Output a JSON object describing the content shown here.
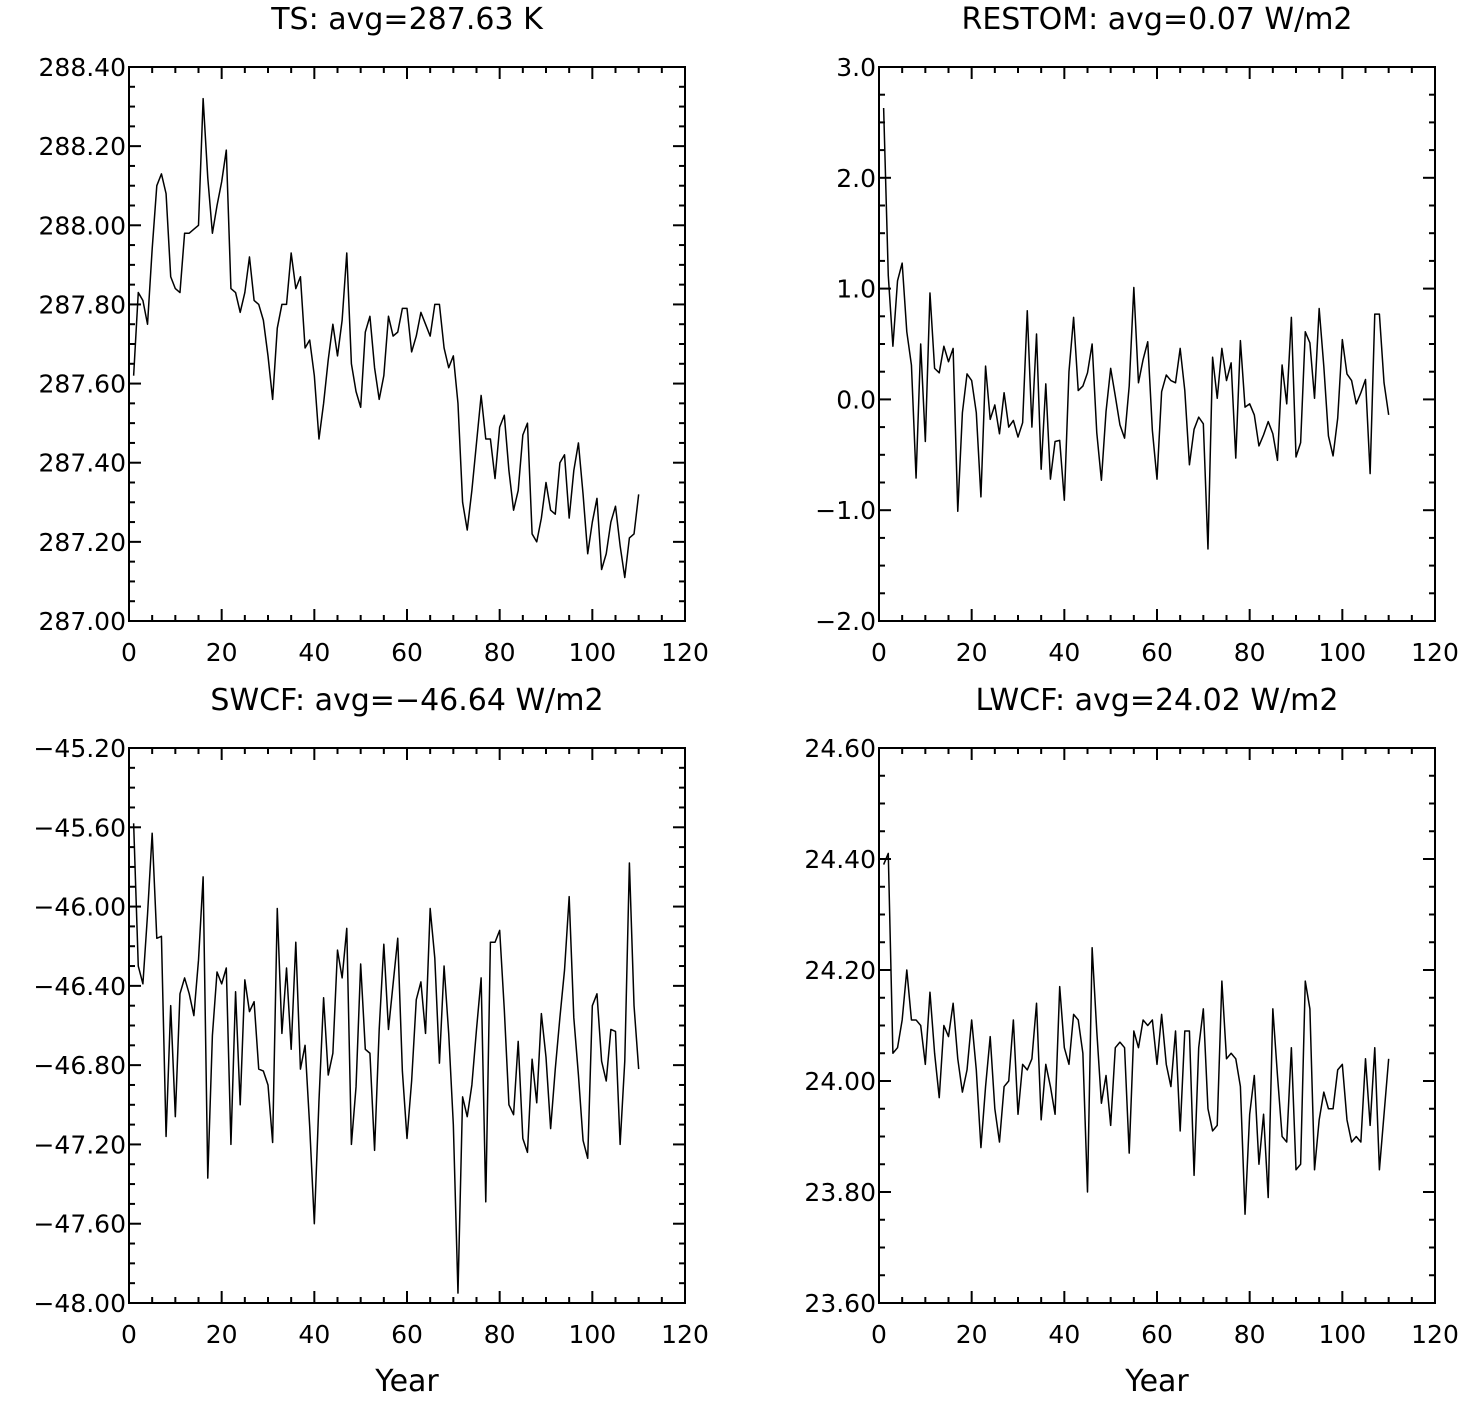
{
  "figure": {
    "colors": {
      "line": "#000000",
      "frame": "#000000",
      "background": "#ffffff"
    }
  },
  "chart_data": [
    {
      "id": "ts",
      "type": "line",
      "title": "TS: avg=287.63 K",
      "xlabel": "",
      "ylabel": "",
      "xlim": [
        0,
        120
      ],
      "ylim": [
        287.0,
        288.4
      ],
      "xticks": [
        0,
        20,
        40,
        60,
        80,
        100,
        120
      ],
      "xtick_labels": [
        "0",
        "20",
        "40",
        "60",
        "80",
        "100",
        "120"
      ],
      "yticks": [
        287.0,
        287.2,
        287.4,
        287.6,
        287.8,
        288.0,
        288.2,
        288.4
      ],
      "ytick_labels": [
        "287.00",
        "287.20",
        "287.40",
        "287.60",
        "287.80",
        "288.00",
        "288.20",
        "288.40"
      ],
      "grid": false,
      "x_start": 1,
      "x_step": 1,
      "values": [
        287.62,
        287.83,
        287.81,
        287.75,
        287.94,
        288.1,
        288.13,
        288.08,
        287.87,
        287.84,
        287.83,
        287.98,
        287.98,
        287.99,
        288.0,
        288.32,
        288.12,
        287.98,
        288.05,
        288.11,
        288.19,
        287.84,
        287.83,
        287.78,
        287.83,
        287.92,
        287.81,
        287.8,
        287.76,
        287.67,
        287.56,
        287.74,
        287.8,
        287.8,
        287.93,
        287.84,
        287.87,
        287.69,
        287.71,
        287.62,
        287.46,
        287.55,
        287.66,
        287.75,
        287.67,
        287.76,
        287.93,
        287.65,
        287.58,
        287.54,
        287.73,
        287.77,
        287.64,
        287.56,
        287.62,
        287.77,
        287.72,
        287.73,
        287.79,
        287.79,
        287.68,
        287.72,
        287.78,
        287.75,
        287.72,
        287.8,
        287.8,
        287.69,
        287.64,
        287.67,
        287.55,
        287.3,
        287.23,
        287.33,
        287.45,
        287.57,
        287.46,
        287.46,
        287.36,
        287.49,
        287.52,
        287.38,
        287.28,
        287.33,
        287.47,
        287.5,
        287.22,
        287.2,
        287.26,
        287.35,
        287.28,
        287.27,
        287.4,
        287.42,
        287.26,
        287.38,
        287.45,
        287.32,
        287.17,
        287.25,
        287.31,
        287.13,
        287.17,
        287.25,
        287.29,
        287.19,
        287.11,
        287.21,
        287.22,
        287.32
      ]
    },
    {
      "id": "restom",
      "type": "line",
      "title": "RESTOM: avg=0.07 W/m2",
      "xlabel": "",
      "ylabel": "",
      "xlim": [
        0,
        120
      ],
      "ylim": [
        -2.0,
        3.0
      ],
      "xticks": [
        0,
        20,
        40,
        60,
        80,
        100,
        120
      ],
      "xtick_labels": [
        "0",
        "20",
        "40",
        "60",
        "80",
        "100",
        "120"
      ],
      "yticks": [
        -2.0,
        -1.0,
        0.0,
        1.0,
        2.0,
        3.0
      ],
      "ytick_labels": [
        "−2.0",
        "−1.0",
        "0.0",
        "1.0",
        "2.0",
        "3.0"
      ],
      "grid": false,
      "x_start": 1,
      "x_step": 1,
      "values": [
        2.63,
        1.12,
        0.48,
        1.07,
        1.23,
        0.61,
        0.31,
        -0.71,
        0.5,
        -0.38,
        0.96,
        0.28,
        0.24,
        0.48,
        0.34,
        0.46,
        -1.01,
        -0.12,
        0.23,
        0.17,
        -0.12,
        -0.88,
        0.3,
        -0.18,
        -0.05,
        -0.31,
        0.06,
        -0.25,
        -0.19,
        -0.34,
        -0.21,
        0.8,
        -0.25,
        0.59,
        -0.63,
        0.14,
        -0.72,
        -0.38,
        -0.37,
        -0.91,
        0.25,
        0.74,
        0.08,
        0.12,
        0.24,
        0.5,
        -0.3,
        -0.73,
        -0.11,
        0.28,
        0.03,
        -0.23,
        -0.35,
        0.12,
        1.01,
        0.15,
        0.36,
        0.52,
        -0.28,
        -0.72,
        0.07,
        0.22,
        0.17,
        0.15,
        0.46,
        0.08,
        -0.59,
        -0.27,
        -0.16,
        -0.22,
        -1.35,
        0.38,
        0.01,
        0.46,
        0.17,
        0.33,
        -0.53,
        0.53,
        -0.07,
        -0.04,
        -0.14,
        -0.42,
        -0.32,
        -0.2,
        -0.31,
        -0.55,
        0.31,
        -0.04,
        0.74,
        -0.52,
        -0.39,
        0.61,
        0.51,
        0.01,
        0.82,
        0.3,
        -0.33,
        -0.51,
        -0.17,
        0.54,
        0.23,
        0.17,
        -0.04,
        0.06,
        0.18,
        -0.67,
        0.77,
        0.77,
        0.15,
        -0.14
      ]
    },
    {
      "id": "swcf",
      "type": "line",
      "title": "SWCF: avg=−46.64 W/m2",
      "xlabel": "Year",
      "ylabel": "",
      "xlim": [
        0,
        120
      ],
      "ylim": [
        -48.0,
        -45.2
      ],
      "xticks": [
        0,
        20,
        40,
        60,
        80,
        100,
        120
      ],
      "xtick_labels": [
        "0",
        "20",
        "40",
        "60",
        "80",
        "100",
        "120"
      ],
      "yticks": [
        -48.0,
        -47.6,
        -47.2,
        -46.8,
        -46.4,
        -46.0,
        -45.6,
        -45.2
      ],
      "ytick_labels": [
        "−48.00",
        "−47.60",
        "−47.20",
        "−46.80",
        "−46.40",
        "−46.00",
        "−45.60",
        "−45.20"
      ],
      "grid": false,
      "x_start": 1,
      "x_step": 1,
      "values": [
        -45.58,
        -46.3,
        -46.39,
        -46.04,
        -45.63,
        -46.16,
        -46.15,
        -47.16,
        -46.5,
        -47.06,
        -46.44,
        -46.36,
        -46.44,
        -46.55,
        -46.27,
        -45.85,
        -47.37,
        -46.65,
        -46.33,
        -46.39,
        -46.31,
        -47.2,
        -46.43,
        -47.0,
        -46.37,
        -46.53,
        -46.48,
        -46.82,
        -46.83,
        -46.9,
        -47.19,
        -46.01,
        -46.64,
        -46.31,
        -46.72,
        -46.18,
        -46.82,
        -46.7,
        -47.11,
        -47.6,
        -46.98,
        -46.46,
        -46.85,
        -46.74,
        -46.22,
        -46.36,
        -46.11,
        -47.2,
        -46.91,
        -46.29,
        -46.72,
        -46.74,
        -47.23,
        -46.62,
        -46.19,
        -46.62,
        -46.39,
        -46.16,
        -46.83,
        -47.17,
        -46.88,
        -46.47,
        -46.38,
        -46.64,
        -46.01,
        -46.26,
        -46.79,
        -46.3,
        -46.64,
        -47.1,
        -47.95,
        -46.96,
        -47.06,
        -46.9,
        -46.62,
        -46.36,
        -47.49,
        -46.18,
        -46.18,
        -46.12,
        -46.52,
        -47.0,
        -47.05,
        -46.68,
        -47.17,
        -47.24,
        -46.77,
        -46.99,
        -46.54,
        -46.76,
        -47.12,
        -46.82,
        -46.56,
        -46.32,
        -45.95,
        -46.56,
        -46.85,
        -47.18,
        -47.27,
        -46.5,
        -46.44,
        -46.78,
        -46.88,
        -46.62,
        -46.63,
        -47.2,
        -46.78,
        -45.78,
        -46.5,
        -46.82
      ]
    },
    {
      "id": "lwcf",
      "type": "line",
      "title": "LWCF: avg=24.02 W/m2",
      "xlabel": "Year",
      "ylabel": "",
      "xlim": [
        0,
        120
      ],
      "ylim": [
        23.6,
        24.6
      ],
      "xticks": [
        0,
        20,
        40,
        60,
        80,
        100,
        120
      ],
      "xtick_labels": [
        "0",
        "20",
        "40",
        "60",
        "80",
        "100",
        "120"
      ],
      "yticks": [
        23.6,
        23.8,
        24.0,
        24.2,
        24.4,
        24.6
      ],
      "ytick_labels": [
        "23.60",
        "23.80",
        "24.00",
        "24.20",
        "24.40",
        "24.60"
      ],
      "grid": false,
      "x_start": 1,
      "x_step": 1,
      "values": [
        24.39,
        24.41,
        24.05,
        24.06,
        24.11,
        24.2,
        24.11,
        24.11,
        24.1,
        24.03,
        24.16,
        24.05,
        23.97,
        24.1,
        24.08,
        24.14,
        24.04,
        23.98,
        24.02,
        24.11,
        24.02,
        23.88,
        23.99,
        24.08,
        23.95,
        23.89,
        23.99,
        24.0,
        24.11,
        23.94,
        24.03,
        24.02,
        24.04,
        24.14,
        23.93,
        24.03,
        23.99,
        23.94,
        24.17,
        24.06,
        24.03,
        24.12,
        24.11,
        24.05,
        23.8,
        24.24,
        24.09,
        23.96,
        24.01,
        23.92,
        24.06,
        24.07,
        24.06,
        23.87,
        24.09,
        24.06,
        24.11,
        24.1,
        24.11,
        24.03,
        24.12,
        24.03,
        23.99,
        24.09,
        23.91,
        24.09,
        24.09,
        23.83,
        24.06,
        24.13,
        23.95,
        23.91,
        23.92,
        24.18,
        24.04,
        24.05,
        24.04,
        23.99,
        23.76,
        23.94,
        24.01,
        23.85,
        23.94,
        23.79,
        24.13,
        24.01,
        23.9,
        23.89,
        24.06,
        23.84,
        23.85,
        24.18,
        24.13,
        23.84,
        23.93,
        23.98,
        23.95,
        23.95,
        24.02,
        24.03,
        23.93,
        23.89,
        23.9,
        23.89,
        24.04,
        23.92,
        24.06,
        23.84,
        23.94,
        24.04
      ]
    }
  ]
}
